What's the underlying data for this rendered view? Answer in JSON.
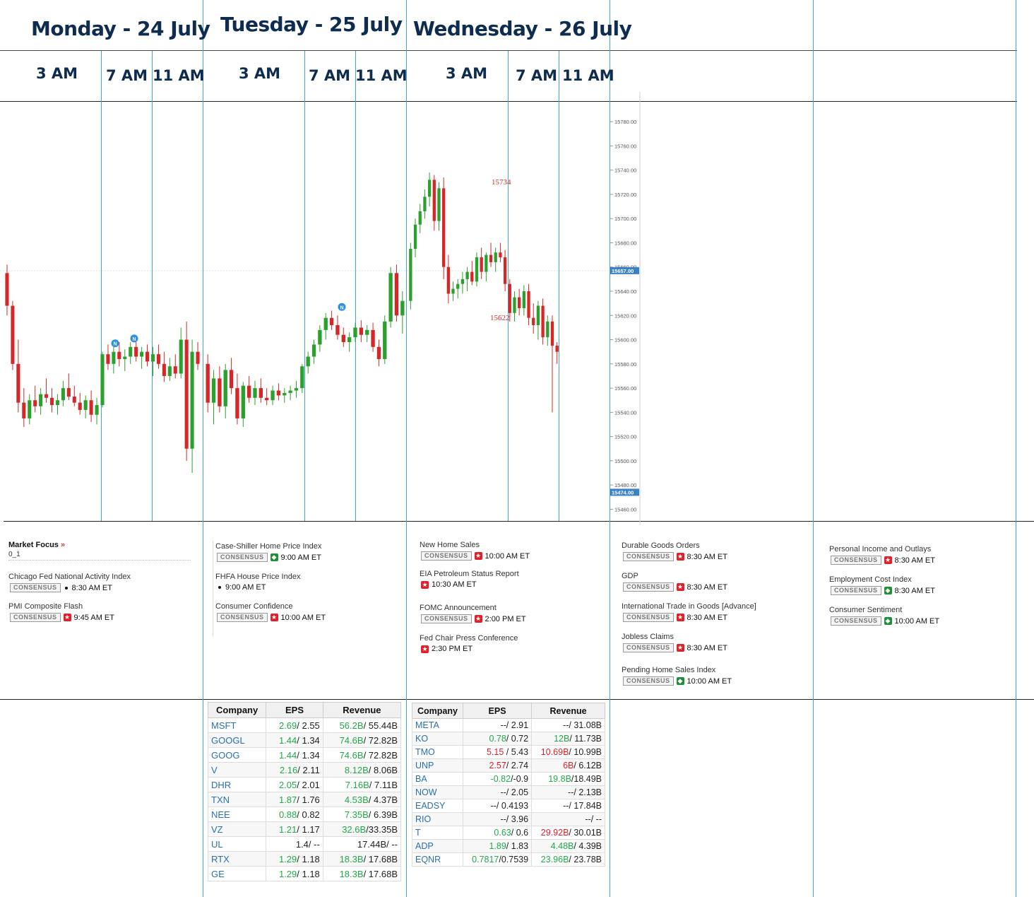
{
  "days": [
    {
      "title": "Monday - 24 July",
      "times": [
        "3 AM",
        "7 AM",
        "11 AM"
      ]
    },
    {
      "title": "Tuesday - 25 July",
      "times": [
        "3 AM",
        "7 AM",
        "11 AM"
      ]
    },
    {
      "title": "Wednesday - 26 July",
      "times": [
        "3 AM",
        "7 AM",
        "11 AM"
      ]
    }
  ],
  "market_focus": {
    "title": "Market Focus",
    "arrow": "»",
    "subtitle": "0_1"
  },
  "consensus_label": "CONSENSUS",
  "events": {
    "monday": [
      {
        "name": "Chicago Fed National Activity Index",
        "importance": "low",
        "time": "8:30 AM ET"
      },
      {
        "name": "PMI Composite Flash",
        "importance": "high",
        "time": "9:45 AM ET"
      }
    ],
    "tuesday": [
      {
        "name": "Case-Shiller Home Price Index",
        "importance": "medium",
        "time": "9:00 AM ET"
      },
      {
        "name": "FHFA House Price Index",
        "importance": "low",
        "time": "9:00 AM ET"
      },
      {
        "name": "Consumer Confidence",
        "importance": "high",
        "time": "10:00 AM ET"
      }
    ],
    "wednesday": [
      {
        "name": "New Home Sales",
        "importance": "high",
        "time": "10:00 AM ET"
      },
      {
        "name": "EIA Petroleum Status Report",
        "importance": "high",
        "time": "10:30 AM ET"
      },
      {
        "name": "FOMC Announcement",
        "importance": "high",
        "time": "2:00 PM ET"
      },
      {
        "name": "Fed Chair Press Conference",
        "importance": "high",
        "time": "2:30 PM ET"
      }
    ],
    "thursday": [
      {
        "name": "Durable Goods Orders",
        "importance": "high",
        "time": "8:30 AM ET"
      },
      {
        "name": "GDP",
        "importance": "high",
        "time": "8:30 AM ET"
      },
      {
        "name": "International Trade in Goods [Advance]",
        "importance": "high",
        "time": "8:30 AM ET"
      },
      {
        "name": "Jobless Claims",
        "importance": "high",
        "time": "8:30 AM ET"
      },
      {
        "name": "Pending Home Sales Index",
        "importance": "medium",
        "time": "10:00 AM ET"
      }
    ],
    "friday": [
      {
        "name": "Personal Income and Outlays",
        "importance": "high",
        "time": "8:30 AM ET"
      },
      {
        "name": "Employment Cost Index",
        "importance": "medium",
        "time": "8:30 AM ET"
      },
      {
        "name": "Consumer Sentiment",
        "importance": "medium",
        "time": "10:00 AM ET"
      }
    ]
  },
  "earnings": {
    "headers": [
      "Company",
      "EPS",
      "Revenue"
    ],
    "tuesday": [
      {
        "ticker": "MSFT",
        "eps_act": "2.69",
        "eps_est": "/ 2.55",
        "eps_color": "pos",
        "rev_act": "56.2B",
        "rev_est": "/ 55.44B",
        "rev_color": "pos"
      },
      {
        "ticker": "GOOGL",
        "eps_act": "1.44",
        "eps_est": "/ 1.34",
        "eps_color": "pos",
        "rev_act": "74.6B",
        "rev_est": "/ 72.82B",
        "rev_color": "pos"
      },
      {
        "ticker": "GOOG",
        "eps_act": "1.44",
        "eps_est": "/ 1.34",
        "eps_color": "pos",
        "rev_act": "74.6B",
        "rev_est": "/ 72.82B",
        "rev_color": "pos"
      },
      {
        "ticker": "V",
        "eps_act": "2.16",
        "eps_est": "/ 2.11",
        "eps_color": "pos",
        "rev_act": "8.12B",
        "rev_est": "/ 8.06B",
        "rev_color": "pos"
      },
      {
        "ticker": "DHR",
        "eps_act": "2.05",
        "eps_est": "/ 2.01",
        "eps_color": "pos",
        "rev_act": "7.16B",
        "rev_est": "/ 7.11B",
        "rev_color": "pos"
      },
      {
        "ticker": "TXN",
        "eps_act": "1.87",
        "eps_est": "/ 1.76",
        "eps_color": "pos",
        "rev_act": "4.53B",
        "rev_est": "/ 4.37B",
        "rev_color": "pos"
      },
      {
        "ticker": "NEE",
        "eps_act": "0.88",
        "eps_est": "/ 0.82",
        "eps_color": "pos",
        "rev_act": "7.35B",
        "rev_est": "/ 6.39B",
        "rev_color": "pos"
      },
      {
        "ticker": "VZ",
        "eps_act": "1.21",
        "eps_est": "/ 1.17",
        "eps_color": "pos",
        "rev_act": "32.6B",
        "rev_est": "/33.35B",
        "rev_color": "pos"
      },
      {
        "ticker": "UL",
        "eps_act": "1.4",
        "eps_est": "/ --",
        "eps_color": "",
        "rev_act": "17.44B",
        "rev_est": "/ --",
        "rev_color": ""
      },
      {
        "ticker": "RTX",
        "eps_act": "1.29",
        "eps_est": "/ 1.18",
        "eps_color": "pos",
        "rev_act": "18.3B",
        "rev_est": "/ 17.68B",
        "rev_color": "pos"
      },
      {
        "ticker": "GE",
        "eps_act": "1.29",
        "eps_est": "/ 1.18",
        "eps_color": "pos",
        "rev_act": "18.3B",
        "rev_est": "/ 17.68B",
        "rev_color": "pos"
      }
    ],
    "wednesday": [
      {
        "ticker": "META",
        "eps_act": "--",
        "eps_est": "/ 2.91",
        "eps_color": "",
        "rev_act": "--",
        "rev_est": "/ 31.08B",
        "rev_color": ""
      },
      {
        "ticker": "KO",
        "eps_act": "0.78",
        "eps_est": "/ 0.72",
        "eps_color": "pos",
        "rev_act": "12B",
        "rev_est": "/ 11.73B",
        "rev_color": "pos"
      },
      {
        "ticker": "TMO",
        "eps_act": "5.15",
        "eps_est": " / 5.43",
        "eps_color": "neg",
        "rev_act": "10.69B",
        "rev_est": "/ 10.99B",
        "rev_color": "neg"
      },
      {
        "ticker": "UNP",
        "eps_act": "2.57",
        "eps_est": "/ 2.74",
        "eps_color": "neg",
        "rev_act": "6B",
        "rev_est": "/ 6.12B",
        "rev_color": "neg"
      },
      {
        "ticker": "BA",
        "eps_act": "-0.82",
        "eps_est": "/-0.9",
        "eps_color": "pos",
        "rev_act": "19.8B",
        "rev_est": "/18.49B",
        "rev_color": "pos"
      },
      {
        "ticker": "NOW",
        "eps_act": "--",
        "eps_est": "/ 2.05",
        "eps_color": "",
        "rev_act": "--",
        "rev_est": "/ 2.13B",
        "rev_color": ""
      },
      {
        "ticker": "EADSY",
        "eps_act": "--",
        "eps_est": "/ 0.4193",
        "eps_color": "",
        "rev_act": "--",
        "rev_est": "/ 17.84B",
        "rev_color": ""
      },
      {
        "ticker": "RIO",
        "eps_act": "--",
        "eps_est": "/ 3.96",
        "eps_color": "",
        "rev_act": "--",
        "rev_est": "/ --",
        "rev_color": ""
      },
      {
        "ticker": "T",
        "eps_act": "0.63",
        "eps_est": "/ 0.6",
        "eps_color": "pos",
        "rev_act": "29.92B",
        "rev_est": "/ 30.01B",
        "rev_color": "neg"
      },
      {
        "ticker": "ADP",
        "eps_act": "1.89",
        "eps_est": "/ 1.83",
        "eps_color": "pos",
        "rev_act": "4.48B",
        "rev_est": "/ 4.39B",
        "rev_color": "pos"
      },
      {
        "ticker": "EQNR",
        "eps_act": "0.7817",
        "eps_est": "/0.7539",
        "eps_color": "pos",
        "rev_act": "23.96B",
        "rev_est": "/ 23.78B",
        "rev_color": "pos"
      }
    ]
  },
  "chart_data": {
    "type": "candlestick",
    "y_range": [
      15455,
      15790
    ],
    "y_ticks": [
      "15780.00",
      "15760.00",
      "15740.00",
      "15720.00",
      "15700.00",
      "15680.00",
      "15660.00",
      "15640.00",
      "15620.00",
      "15600.00",
      "15580.00",
      "15560.00",
      "15540.00",
      "15520.00",
      "15500.00",
      "15480.00",
      "15460.00"
    ],
    "current_price_label": "15657.00",
    "low_price_label": "15474.00",
    "annotations": [
      {
        "text": "15734"
      },
      {
        "text": "15622"
      }
    ],
    "news_marker_label": "N",
    "colors": {
      "up": "#2ca02c",
      "down": "#d62728"
    },
    "series": [
      {
        "name": "Monday",
        "ohlc": [
          [
            15655,
            15662,
            15620,
            15628
          ],
          [
            15628,
            15632,
            15575,
            15580
          ],
          [
            15580,
            15600,
            15540,
            15548
          ],
          [
            15548,
            15560,
            15528,
            15535
          ],
          [
            15535,
            15555,
            15530,
            15550
          ],
          [
            15550,
            15562,
            15540,
            15545
          ],
          [
            15545,
            15560,
            15538,
            15555
          ],
          [
            15555,
            15568,
            15548,
            15552
          ],
          [
            15552,
            15560,
            15540,
            15546
          ],
          [
            15546,
            15555,
            15538,
            15550
          ],
          [
            15550,
            15566,
            15545,
            15560
          ],
          [
            15560,
            15572,
            15550,
            15553
          ],
          [
            15553,
            15562,
            15545,
            15548
          ],
          [
            15548,
            15556,
            15538,
            15542
          ],
          [
            15542,
            15554,
            15535,
            15550
          ],
          [
            15550,
            15558,
            15532,
            15538
          ],
          [
            15538,
            15552,
            15530,
            15546
          ],
          [
            15546,
            15590,
            15544,
            15588
          ],
          [
            15588,
            15596,
            15575,
            15580
          ],
          [
            15580,
            15594,
            15572,
            15590
          ],
          [
            15590,
            15598,
            15578,
            15584
          ],
          [
            15584,
            15592,
            15574,
            15586
          ],
          [
            15586,
            15598,
            15580,
            15594
          ],
          [
            15594,
            15600,
            15582,
            15586
          ],
          [
            15586,
            15594,
            15576,
            15590
          ],
          [
            15590,
            15596,
            15578,
            15582
          ],
          [
            15582,
            15594,
            15570,
            15588
          ],
          [
            15588,
            15596,
            15576,
            15580
          ],
          [
            15580,
            15590,
            15565,
            15570
          ],
          [
            15570,
            15585,
            15566,
            15578
          ],
          [
            15578,
            15588,
            15568,
            15572
          ],
          [
            15572,
            15610,
            15568,
            15600
          ],
          [
            15600,
            15615,
            15500,
            15510
          ],
          [
            15510,
            15600,
            15490,
            15590
          ],
          [
            15590,
            15598,
            15575,
            15580
          ]
        ]
      },
      {
        "name": "Tuesday",
        "ohlc": [
          [
            15580,
            15588,
            15540,
            15548
          ],
          [
            15548,
            15575,
            15530,
            15568
          ],
          [
            15568,
            15578,
            15540,
            15545
          ],
          [
            15545,
            15580,
            15535,
            15575
          ],
          [
            15575,
            15585,
            15555,
            15560
          ],
          [
            15560,
            15572,
            15530,
            15535
          ],
          [
            15535,
            15565,
            15528,
            15562
          ],
          [
            15562,
            15570,
            15548,
            15552
          ],
          [
            15552,
            15566,
            15546,
            15560
          ],
          [
            15560,
            15568,
            15548,
            15552
          ],
          [
            15552,
            15560,
            15546,
            15550
          ],
          [
            15550,
            15562,
            15546,
            15558
          ],
          [
            15558,
            15564,
            15550,
            15554
          ],
          [
            15554,
            15560,
            15548,
            15556
          ],
          [
            15556,
            15562,
            15550,
            15558
          ],
          [
            15558,
            15566,
            15552,
            15560
          ],
          [
            15560,
            15580,
            15556,
            15578
          ],
          [
            15578,
            15590,
            15572,
            15586
          ],
          [
            15586,
            15600,
            15580,
            15596
          ],
          [
            15596,
            15612,
            15590,
            15608
          ],
          [
            15608,
            15622,
            15600,
            15618
          ],
          [
            15618,
            15624,
            15608,
            15612
          ],
          [
            15612,
            15620,
            15600,
            15604
          ],
          [
            15604,
            15610,
            15594,
            15598
          ],
          [
            15598,
            15606,
            15590,
            15602
          ],
          [
            15602,
            15614,
            15598,
            15610
          ],
          [
            15610,
            15616,
            15598,
            15604
          ],
          [
            15604,
            15612,
            15598,
            15608
          ],
          [
            15608,
            15614,
            15590,
            15594
          ],
          [
            15594,
            15600,
            15578,
            15584
          ],
          [
            15584,
            15620,
            15580,
            15615
          ],
          [
            15615,
            15660,
            15610,
            15655
          ],
          [
            15655,
            15662,
            15615,
            15620
          ],
          [
            15620,
            15640,
            15605,
            15632
          ]
        ]
      },
      {
        "name": "Wednesday",
        "ohlc": [
          [
            15632,
            15680,
            15625,
            15675
          ],
          [
            15675,
            15700,
            15668,
            15695
          ],
          [
            15695,
            15712,
            15688,
            15706
          ],
          [
            15706,
            15724,
            15700,
            15718
          ],
          [
            15718,
            15738,
            15710,
            15732
          ],
          [
            15732,
            15736,
            15690,
            15698
          ],
          [
            15698,
            15730,
            15690,
            15725
          ],
          [
            15725,
            15734,
            15650,
            15660
          ],
          [
            15660,
            15670,
            15630,
            15638
          ],
          [
            15638,
            15648,
            15632,
            15642
          ],
          [
            15642,
            15650,
            15634,
            15646
          ],
          [
            15646,
            15656,
            15638,
            15650
          ],
          [
            15650,
            15660,
            15640,
            15656
          ],
          [
            15656,
            15665,
            15645,
            15648
          ],
          [
            15648,
            15672,
            15644,
            15668
          ],
          [
            15668,
            15676,
            15650,
            15656
          ],
          [
            15656,
            15672,
            15648,
            15670
          ],
          [
            15670,
            15680,
            15660,
            15664
          ],
          [
            15664,
            15676,
            15656,
            15672
          ],
          [
            15672,
            15680,
            15664,
            15668
          ],
          [
            15668,
            15674,
            15640,
            15646
          ],
          [
            15646,
            15650,
            15615,
            15622
          ],
          [
            15622,
            15640,
            15615,
            15635
          ],
          [
            15635,
            15642,
            15620,
            15626
          ],
          [
            15626,
            15645,
            15620,
            15640
          ],
          [
            15640,
            15646,
            15612,
            15618
          ],
          [
            15618,
            15630,
            15605,
            15612
          ],
          [
            15612,
            15632,
            15600,
            15628
          ],
          [
            15628,
            15634,
            15596,
            15602
          ],
          [
            15602,
            15620,
            15595,
            15615
          ],
          [
            15615,
            15620,
            15540,
            15595
          ],
          [
            15595,
            15598,
            15580,
            15590
          ]
        ]
      }
    ]
  }
}
